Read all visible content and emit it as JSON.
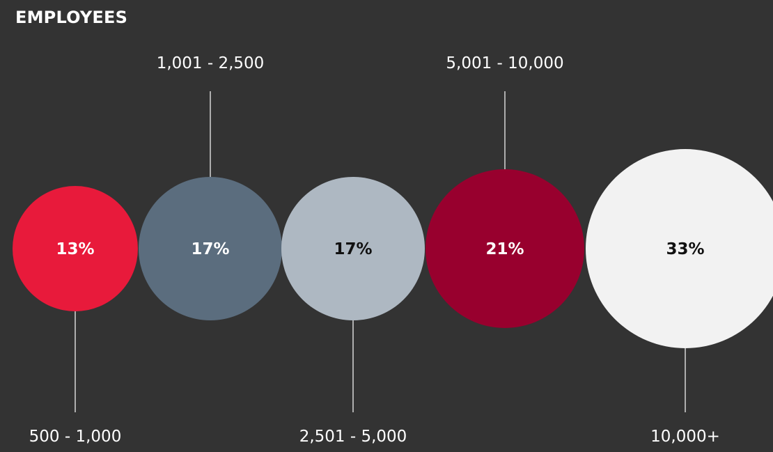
{
  "title": "EMPLOYEES",
  "colors": {
    "background": "#333333",
    "connector": "#f2f2f2",
    "label_text": "#ffffff"
  },
  "chart_data": {
    "type": "bubble",
    "title": "EMPLOYEES",
    "categories": [
      "500 - 1,000",
      "1,001 - 2,500",
      "2,501 - 5,000",
      "5,001 - 10,000",
      "10,000+"
    ],
    "values": [
      13,
      17,
      17,
      21,
      33
    ],
    "value_labels": [
      "13%",
      "17%",
      "17%",
      "21%",
      "33%"
    ],
    "label_positions": [
      "bottom",
      "top",
      "bottom",
      "top",
      "bottom"
    ],
    "colors": [
      "#e81a3b",
      "#5b6d7e",
      "#aeb8c2",
      "#98002e",
      "#f2f2f2"
    ],
    "value_text_colors": [
      "#ffffff",
      "#ffffff",
      "#111111",
      "#ffffff",
      "#111111"
    ]
  }
}
